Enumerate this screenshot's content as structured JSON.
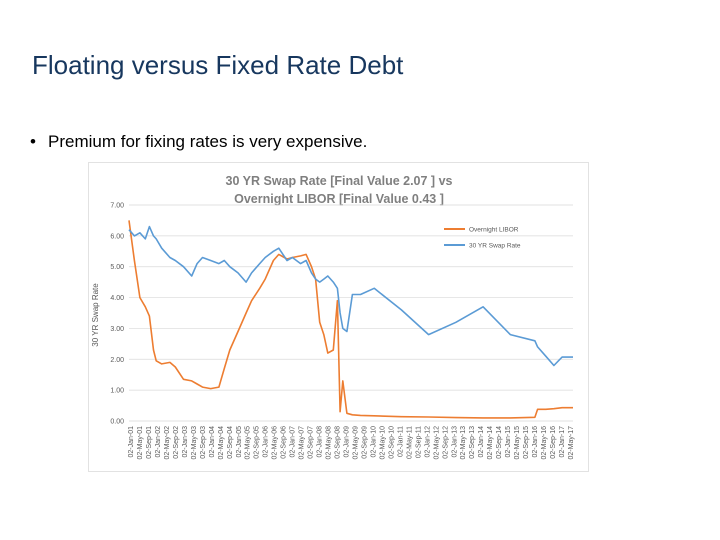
{
  "slide": {
    "title": "Floating versus Fixed Rate Debt",
    "bullet": "Premium for fixing rates is very expensive."
  },
  "chart_data": {
    "type": "line",
    "title_line1": "30 YR Swap Rate [Final Value 2.07 ] vs",
    "title_line2": "Overnight LIBOR [Final Value 0.43 ]",
    "xlabel": "",
    "ylabel": "30 YR Swap Rate",
    "ylim": [
      0,
      7
    ],
    "yticks": [
      "7.00",
      "6.00",
      "5.00",
      "4.00",
      "3.00",
      "2.00",
      "1.00",
      "0.00"
    ],
    "legend_position": "top-right",
    "grid": true,
    "colors": {
      "libor": "#ed7d31",
      "swap": "#5b9bd5",
      "grid": "#d9d9d9"
    },
    "xticks": [
      "02-Jan-01",
      "02-May-01",
      "02-Sep-01",
      "02-Jan-02",
      "02-May-02",
      "02-Sep-02",
      "02-Jan-03",
      "02-May-03",
      "02-Sep-03",
      "02-Jan-04",
      "02-May-04",
      "02-Sep-04",
      "02-Jan-05",
      "02-May-05",
      "02-Sep-05",
      "02-Jan-06",
      "02-May-06",
      "02-Sep-06",
      "02-Jan-07",
      "02-May-07",
      "02-Sep-07",
      "02-Jan-08",
      "02-May-08",
      "02-Sep-08",
      "02-Jan-09",
      "02-May-09",
      "02-Sep-09",
      "02-Jan-10",
      "02-May-10",
      "02-Sep-10",
      "02-Jan-11",
      "02-May-11",
      "02-Sep-11",
      "02-Jan-12",
      "02-May-12",
      "02-Sep-12",
      "02-Jan-13",
      "02-May-13",
      "02-Sep-13",
      "02-Jan-14",
      "02-May-14",
      "02-Sep-14",
      "02-Jan-15",
      "02-May-15",
      "02-Sep-15",
      "02-Jan-16",
      "02-May-16",
      "02-Sep-16",
      "02-Jan-17",
      "02-May-17"
    ],
    "x_decimal_year": [
      2001.0,
      2001.2,
      2001.4,
      2001.6,
      2001.75,
      2001.9,
      2002.0,
      2002.2,
      2002.5,
      2002.7,
      2003.0,
      2003.3,
      2003.5,
      2003.7,
      2004.0,
      2004.3,
      2004.5,
      2004.7,
      2005.0,
      2005.3,
      2005.5,
      2005.8,
      2006.0,
      2006.3,
      2006.5,
      2006.8,
      2007.0,
      2007.3,
      2007.5,
      2007.7,
      2007.85,
      2008.0,
      2008.15,
      2008.3,
      2008.5,
      2008.65,
      2008.75,
      2008.85,
      2009.0,
      2009.2,
      2009.5,
      2010.0,
      2011.0,
      2012.0,
      2013.0,
      2014.0,
      2015.0,
      2015.9,
      2016.0,
      2016.3,
      2016.6,
      2016.9,
      2017.3
    ],
    "series": [
      {
        "name": "Overnight LIBOR",
        "values": [
          6.5,
          5.2,
          4.0,
          3.7,
          3.4,
          2.3,
          1.95,
          1.85,
          1.9,
          1.75,
          1.35,
          1.3,
          1.2,
          1.1,
          1.05,
          1.1,
          1.7,
          2.3,
          2.9,
          3.5,
          3.9,
          4.3,
          4.6,
          5.2,
          5.4,
          5.25,
          5.3,
          5.35,
          5.4,
          5.0,
          4.6,
          3.2,
          2.8,
          2.2,
          2.3,
          3.9,
          0.3,
          1.3,
          0.25,
          0.2,
          0.18,
          0.17,
          0.14,
          0.13,
          0.11,
          0.1,
          0.1,
          0.12,
          0.38,
          0.38,
          0.4,
          0.43,
          0.43
        ]
      },
      {
        "name": "30 YR Swap Rate",
        "values": [
          6.2,
          6.0,
          6.1,
          5.9,
          6.3,
          6.0,
          5.9,
          5.6,
          5.3,
          5.2,
          5.0,
          4.7,
          5.1,
          5.3,
          5.2,
          5.1,
          5.2,
          5.0,
          4.8,
          4.5,
          4.8,
          5.1,
          5.3,
          5.5,
          5.6,
          5.2,
          5.3,
          5.1,
          5.2,
          4.8,
          4.6,
          4.5,
          4.6,
          4.7,
          4.5,
          4.3,
          3.5,
          3.0,
          2.9,
          4.1,
          4.1,
          4.3,
          3.6,
          2.8,
          3.2,
          3.7,
          2.8,
          2.6,
          2.4,
          2.1,
          1.8,
          2.07,
          2.07
        ]
      }
    ]
  }
}
